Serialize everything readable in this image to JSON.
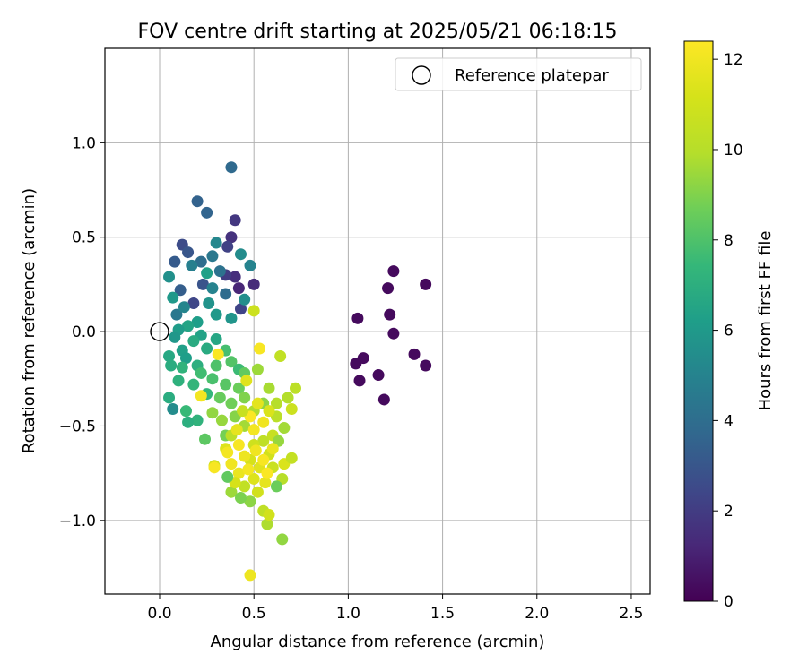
{
  "chart_data": {
    "type": "scatter",
    "title": "FOV centre drift starting at 2025/05/21 06:18:15",
    "xlabel": "Angular distance from reference (arcmin)",
    "ylabel": "Rotation from reference (arcmin)",
    "xlim": [
      -0.29,
      2.6
    ],
    "ylim": [
      -1.39,
      1.5
    ],
    "x_ticks": [
      "0.0",
      "0.5",
      "1.0",
      "1.5",
      "2.0",
      "2.5"
    ],
    "y_ticks": [
      "−1.0",
      "−0.5",
      "0.0",
      "0.5",
      "1.0"
    ],
    "grid": true,
    "legend": {
      "position": "top-right",
      "entries": [
        "Reference platepar"
      ]
    },
    "reference_point": {
      "x": 0.0,
      "y": 0.0
    },
    "colorbar": {
      "label": "Hours from first FF file",
      "range": [
        0,
        12.4
      ],
      "ticks": [
        "0",
        "2",
        "4",
        "6",
        "8",
        "10",
        "12"
      ],
      "colormap": "viridis"
    },
    "points": [
      {
        "x": 1.05,
        "y": 0.07,
        "t": 0.3
      },
      {
        "x": 1.08,
        "y": -0.14,
        "t": 0.3
      },
      {
        "x": 1.04,
        "y": -0.17,
        "t": 0.3
      },
      {
        "x": 1.06,
        "y": -0.26,
        "t": 0.3
      },
      {
        "x": 1.16,
        "y": -0.23,
        "t": 0.3
      },
      {
        "x": 1.19,
        "y": -0.36,
        "t": 0.3
      },
      {
        "x": 1.21,
        "y": 0.23,
        "t": 0.3
      },
      {
        "x": 1.24,
        "y": 0.32,
        "t": 0.3
      },
      {
        "x": 1.22,
        "y": 0.09,
        "t": 0.3
      },
      {
        "x": 1.24,
        "y": -0.01,
        "t": 0.3
      },
      {
        "x": 1.35,
        "y": -0.12,
        "t": 0.3
      },
      {
        "x": 1.41,
        "y": -0.18,
        "t": 0.3
      },
      {
        "x": 1.41,
        "y": 0.25,
        "t": 0.3
      },
      {
        "x": 0.38,
        "y": 0.87,
        "t": 3.8
      },
      {
        "x": 0.2,
        "y": 0.69,
        "t": 3.5
      },
      {
        "x": 0.25,
        "y": 0.63,
        "t": 3.6
      },
      {
        "x": 0.4,
        "y": 0.59,
        "t": 1.8
      },
      {
        "x": 0.38,
        "y": 0.5,
        "t": 1.6
      },
      {
        "x": 0.36,
        "y": 0.45,
        "t": 2.2
      },
      {
        "x": 0.12,
        "y": 0.46,
        "t": 2.6
      },
      {
        "x": 0.15,
        "y": 0.42,
        "t": 3.0
      },
      {
        "x": 0.08,
        "y": 0.37,
        "t": 3.2
      },
      {
        "x": 0.4,
        "y": 0.29,
        "t": 1.5
      },
      {
        "x": 0.42,
        "y": 0.23,
        "t": 1.2
      },
      {
        "x": 0.5,
        "y": 0.25,
        "t": 1.4
      },
      {
        "x": 0.35,
        "y": 0.3,
        "t": 2.0
      },
      {
        "x": 0.43,
        "y": 0.12,
        "t": 2.3
      },
      {
        "x": 0.48,
        "y": 0.35,
        "t": 5.0
      },
      {
        "x": 0.43,
        "y": 0.41,
        "t": 5.4
      },
      {
        "x": 0.28,
        "y": 0.4,
        "t": 4.5
      },
      {
        "x": 0.3,
        "y": 0.47,
        "t": 5.2
      },
      {
        "x": 0.22,
        "y": 0.37,
        "t": 4.0
      },
      {
        "x": 0.17,
        "y": 0.35,
        "t": 4.8
      },
      {
        "x": 0.23,
        "y": 0.25,
        "t": 2.9
      },
      {
        "x": 0.18,
        "y": 0.15,
        "t": 2.4
      },
      {
        "x": 0.11,
        "y": 0.22,
        "t": 3.3
      },
      {
        "x": 0.05,
        "y": 0.29,
        "t": 5.6
      },
      {
        "x": 0.32,
        "y": 0.32,
        "t": 4.2
      },
      {
        "x": 0.35,
        "y": 0.2,
        "t": 3.9
      },
      {
        "x": 0.28,
        "y": 0.23,
        "t": 5.0
      },
      {
        "x": 0.26,
        "y": 0.15,
        "t": 5.7
      },
      {
        "x": 0.3,
        "y": 0.09,
        "t": 6.0
      },
      {
        "x": 0.45,
        "y": 0.17,
        "t": 5.5
      },
      {
        "x": 0.38,
        "y": 0.07,
        "t": 5.8
      },
      {
        "x": 0.2,
        "y": 0.05,
        "t": 6.2
      },
      {
        "x": 0.15,
        "y": 0.03,
        "t": 6.5
      },
      {
        "x": 0.1,
        "y": 0.01,
        "t": 6.1
      },
      {
        "x": 0.08,
        "y": -0.03,
        "t": 5.9
      },
      {
        "x": 0.22,
        "y": -0.02,
        "t": 6.4
      },
      {
        "x": 0.18,
        "y": -0.05,
        "t": 6.8
      },
      {
        "x": 0.3,
        "y": -0.04,
        "t": 6.6
      },
      {
        "x": 0.12,
        "y": -0.1,
        "t": 6.3
      },
      {
        "x": 0.05,
        "y": -0.13,
        "t": 6.7
      },
      {
        "x": 0.06,
        "y": -0.18,
        "t": 6.9
      },
      {
        "x": 0.14,
        "y": -0.14,
        "t": 6.2
      },
      {
        "x": 0.2,
        "y": -0.18,
        "t": 7.0
      },
      {
        "x": 0.25,
        "y": -0.09,
        "t": 6.8
      },
      {
        "x": 0.1,
        "y": -0.26,
        "t": 7.1
      },
      {
        "x": 0.18,
        "y": -0.28,
        "t": 7.3
      },
      {
        "x": 0.05,
        "y": -0.35,
        "t": 6.9
      },
      {
        "x": 0.07,
        "y": -0.41,
        "t": 5.4
      },
      {
        "x": 0.14,
        "y": -0.42,
        "t": 7.5
      },
      {
        "x": 0.2,
        "y": -0.47,
        "t": 7.2
      },
      {
        "x": 0.15,
        "y": -0.48,
        "t": 7.0
      },
      {
        "x": 0.25,
        "y": -0.33,
        "t": 7.4
      },
      {
        "x": 0.22,
        "y": -0.22,
        "t": 7.7
      },
      {
        "x": 0.12,
        "y": -0.19,
        "t": 7.2
      },
      {
        "x": 0.09,
        "y": 0.09,
        "t": 4.5
      },
      {
        "x": 0.13,
        "y": 0.13,
        "t": 5.1
      },
      {
        "x": 0.07,
        "y": 0.18,
        "t": 6.0
      },
      {
        "x": 0.25,
        "y": 0.31,
        "t": 6.3
      },
      {
        "x": 0.35,
        "y": -0.1,
        "t": 7.8
      },
      {
        "x": 0.3,
        "y": -0.18,
        "t": 8.0
      },
      {
        "x": 0.28,
        "y": -0.25,
        "t": 7.9
      },
      {
        "x": 0.35,
        "y": -0.28,
        "t": 8.2
      },
      {
        "x": 0.38,
        "y": -0.16,
        "t": 8.1
      },
      {
        "x": 0.42,
        "y": -0.2,
        "t": 7.6
      },
      {
        "x": 0.45,
        "y": -0.22,
        "t": 8.4
      },
      {
        "x": 0.32,
        "y": -0.35,
        "t": 8.5
      },
      {
        "x": 0.38,
        "y": -0.38,
        "t": 8.7
      },
      {
        "x": 0.42,
        "y": -0.3,
        "t": 8.6
      },
      {
        "x": 0.45,
        "y": -0.35,
        "t": 9.0
      },
      {
        "x": 0.28,
        "y": -0.43,
        "t": 9.3
      },
      {
        "x": 0.24,
        "y": -0.57,
        "t": 8.3
      },
      {
        "x": 0.35,
        "y": -0.55,
        "t": 8.8
      },
      {
        "x": 0.33,
        "y": -0.47,
        "t": 9.4
      },
      {
        "x": 0.4,
        "y": -0.45,
        "t": 9.1
      },
      {
        "x": 0.45,
        "y": -0.5,
        "t": 9.6
      },
      {
        "x": 0.5,
        "y": -0.42,
        "t": 9.8
      },
      {
        "x": 0.55,
        "y": -0.38,
        "t": 9.2
      },
      {
        "x": 0.52,
        "y": -0.2,
        "t": 9.5
      },
      {
        "x": 0.58,
        "y": -0.3,
        "t": 9.7
      },
      {
        "x": 0.62,
        "y": -0.38,
        "t": 10.0
      },
      {
        "x": 0.64,
        "y": -0.13,
        "t": 10.4
      },
      {
        "x": 0.72,
        "y": -0.3,
        "t": 10.2
      },
      {
        "x": 0.68,
        "y": -0.35,
        "t": 9.9
      },
      {
        "x": 0.7,
        "y": -0.41,
        "t": 10.8
      },
      {
        "x": 0.66,
        "y": -0.51,
        "t": 9.6
      },
      {
        "x": 0.62,
        "y": -0.45,
        "t": 10.1
      },
      {
        "x": 0.6,
        "y": -0.55,
        "t": 10.6
      },
      {
        "x": 0.55,
        "y": -0.58,
        "t": 10.3
      },
      {
        "x": 0.5,
        "y": -0.6,
        "t": 10.9
      },
      {
        "x": 0.48,
        "y": -0.68,
        "t": 11.2
      },
      {
        "x": 0.53,
        "y": -0.72,
        "t": 11.5
      },
      {
        "x": 0.58,
        "y": -0.65,
        "t": 11.0
      },
      {
        "x": 0.63,
        "y": -0.58,
        "t": 9.4
      },
      {
        "x": 0.6,
        "y": -0.72,
        "t": 10.7
      },
      {
        "x": 0.66,
        "y": -0.7,
        "t": 11.3
      },
      {
        "x": 0.7,
        "y": -0.67,
        "t": 10.5
      },
      {
        "x": 0.65,
        "y": -0.78,
        "t": 10.0
      },
      {
        "x": 0.62,
        "y": -0.82,
        "t": 8.6
      },
      {
        "x": 0.56,
        "y": -0.8,
        "t": 11.7
      },
      {
        "x": 0.52,
        "y": -0.85,
        "t": 11.0
      },
      {
        "x": 0.48,
        "y": -0.9,
        "t": 9.2
      },
      {
        "x": 0.45,
        "y": -0.82,
        "t": 10.4
      },
      {
        "x": 0.42,
        "y": -0.75,
        "t": 11.8
      },
      {
        "x": 0.38,
        "y": -0.7,
        "t": 12.0
      },
      {
        "x": 0.35,
        "y": -0.62,
        "t": 11.4
      },
      {
        "x": 0.38,
        "y": -0.55,
        "t": 10.2
      },
      {
        "x": 0.42,
        "y": -0.6,
        "t": 12.2
      },
      {
        "x": 0.45,
        "y": -0.66,
        "t": 11.9
      },
      {
        "x": 0.5,
        "y": -0.52,
        "t": 12.1
      },
      {
        "x": 0.48,
        "y": -0.45,
        "t": 12.3
      },
      {
        "x": 0.52,
        "y": -0.38,
        "t": 11.6
      },
      {
        "x": 0.55,
        "y": -0.48,
        "t": 12.0
      },
      {
        "x": 0.58,
        "y": -0.42,
        "t": 11.3
      },
      {
        "x": 0.53,
        "y": -0.09,
        "t": 12.2
      },
      {
        "x": 0.46,
        "y": -0.26,
        "t": 11.5
      },
      {
        "x": 0.5,
        "y": 0.11,
        "t": 10.8
      },
      {
        "x": 0.31,
        "y": -0.12,
        "t": 12.3
      },
      {
        "x": 0.22,
        "y": -0.34,
        "t": 12.1
      },
      {
        "x": 0.29,
        "y": -0.71,
        "t": 11.0
      },
      {
        "x": 0.29,
        "y": -0.72,
        "t": 12.2
      },
      {
        "x": 0.38,
        "y": -0.85,
        "t": 9.5
      },
      {
        "x": 0.4,
        "y": -0.8,
        "t": 11.2
      },
      {
        "x": 0.55,
        "y": -0.95,
        "t": 10.3
      },
      {
        "x": 0.57,
        "y": -1.02,
        "t": 9.8
      },
      {
        "x": 0.58,
        "y": -0.97,
        "t": 11.0
      },
      {
        "x": 0.65,
        "y": -1.1,
        "t": 9.3
      },
      {
        "x": 0.48,
        "y": -1.29,
        "t": 11.9
      },
      {
        "x": 0.43,
        "y": -0.88,
        "t": 8.9
      },
      {
        "x": 0.36,
        "y": -0.77,
        "t": 8.4
      },
      {
        "x": 0.36,
        "y": -0.64,
        "t": 12.1
      },
      {
        "x": 0.41,
        "y": -0.52,
        "t": 11.7
      },
      {
        "x": 0.44,
        "y": -0.42,
        "t": 10.6
      },
      {
        "x": 0.51,
        "y": -0.63,
        "t": 12.0
      },
      {
        "x": 0.55,
        "y": -0.68,
        "t": 12.2
      },
      {
        "x": 0.6,
        "y": -0.62,
        "t": 11.8
      },
      {
        "x": 0.57,
        "y": -0.75,
        "t": 12.3
      },
      {
        "x": 0.5,
        "y": -0.78,
        "t": 11.4
      },
      {
        "x": 0.47,
        "y": -0.73,
        "t": 12.1
      }
    ]
  }
}
